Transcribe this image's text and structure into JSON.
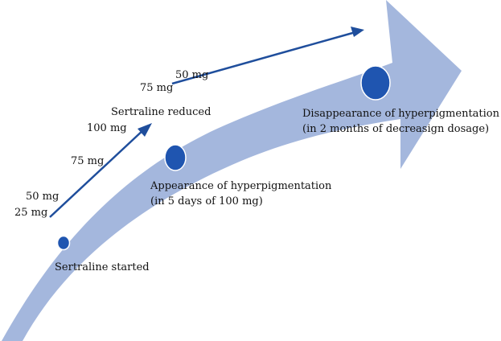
{
  "colors": {
    "big_arrow": "#a4b7dd",
    "dose_arrow": "#1f4e9c",
    "dot_fill": "#1f55b0",
    "dot_stroke": "#ffffff"
  },
  "doses": {
    "d25": "25 mg",
    "d50_start": "50 mg",
    "d75_up": "75 mg",
    "d100": "100 mg",
    "d75_down": "75 mg",
    "d50_end": "50 mg"
  },
  "events": {
    "started": "Sertraline started",
    "reduced": "Sertraline reduced",
    "appearance_title": "Appearance of hyperpigmentation",
    "appearance_note": "(in 5 days of 100 mg)",
    "disappearance_title": "Disappearance of hyperpigmentation",
    "disappearance_note": "(in 2 months of decreasign dosage)"
  }
}
